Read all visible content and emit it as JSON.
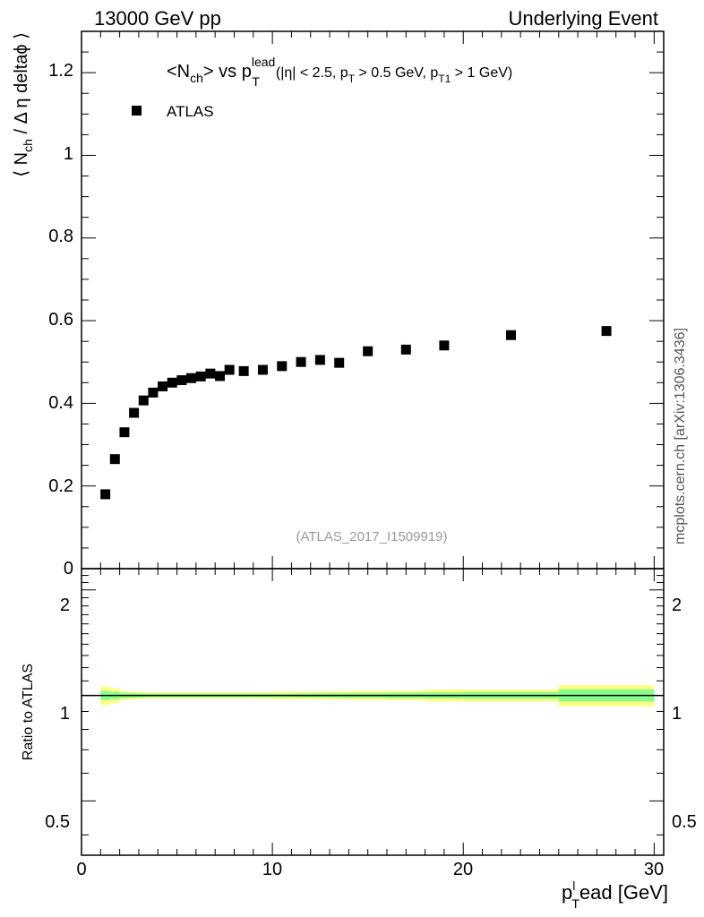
{
  "header": {
    "left": "13000 GeV pp",
    "right": "Underlying Event"
  },
  "plot_title": {
    "main_pre": "<N",
    "main_sub": "ch",
    "main_mid": "> vs p",
    "main_sup": "lead",
    "main_sub2": "T",
    "cuts_1": "(|η| < 2.5, p",
    "cuts_sub1": "T",
    "cuts_2": " > 0.5 GeV, p",
    "cuts_sub2": "T1",
    "cuts_3": " > 1 GeV)"
  },
  "legend": {
    "label": "ATLAS"
  },
  "analysis_id": "(ATLAS_2017_I1509919)",
  "side_text": "mcplots.cern.ch [arXiv:1306.3436]",
  "ylabel_main": {
    "pre": "⟨ N",
    "sub": "ch",
    "post": " / Δ η deltaϕ ⟩"
  },
  "ylabel_ratio": "Ratio to ATLAS",
  "xlabel": {
    "pre": "p",
    "sup": "l",
    "sub": "T",
    "post": "ead [GeV]"
  },
  "main_ticks": [
    "0",
    "0.2",
    "0.4",
    "0.6",
    "0.8",
    "1",
    "1.2"
  ],
  "ratio_ticks": [
    "0.5",
    "1",
    "2"
  ],
  "x_ticks": [
    "0",
    "10",
    "20",
    "30"
  ],
  "chart_data": [
    {
      "type": "scatter",
      "series": [
        {
          "name": "ATLAS",
          "x": [
            1.25,
            1.75,
            2.25,
            2.75,
            3.25,
            3.75,
            4.25,
            4.75,
            5.25,
            5.75,
            6.25,
            6.75,
            7.25,
            7.75,
            8.5,
            9.5,
            10.5,
            11.5,
            12.5,
            13.5,
            15.0,
            17.0,
            19.0,
            22.5,
            27.5
          ],
          "y": [
            0.18,
            0.265,
            0.33,
            0.377,
            0.407,
            0.426,
            0.441,
            0.45,
            0.456,
            0.461,
            0.465,
            0.472,
            0.466,
            0.481,
            0.478,
            0.481,
            0.49,
            0.5,
            0.505,
            0.498,
            0.526,
            0.53,
            0.54,
            0.565,
            0.575
          ]
        }
      ],
      "xlim": [
        0,
        30.5
      ],
      "ylim": [
        0,
        1.3
      ],
      "grid": false,
      "legend_position": "top-left"
    },
    {
      "type": "area",
      "series": [
        {
          "name": "ATLAS",
          "x_edges": [
            1.0,
            1.5,
            2.0,
            2.5,
            3.0,
            3.5,
            4.0,
            4.5,
            5.0,
            5.5,
            6.0,
            6.5,
            7.0,
            7.5,
            8.0,
            9.0,
            10.0,
            11.0,
            12.0,
            13.0,
            14.0,
            16.0,
            18.0,
            20.0,
            25.0,
            30.0
          ],
          "stat_band": [
            0.03,
            0.025,
            0.018,
            0.015,
            0.013,
            0.012,
            0.012,
            0.012,
            0.012,
            0.012,
            0.012,
            0.012,
            0.012,
            0.012,
            0.012,
            0.012,
            0.012,
            0.013,
            0.014,
            0.015,
            0.016,
            0.018,
            0.02,
            0.022,
            0.04
          ],
          "total_band": [
            0.06,
            0.05,
            0.03,
            0.025,
            0.022,
            0.02,
            0.02,
            0.02,
            0.02,
            0.02,
            0.02,
            0.02,
            0.02,
            0.02,
            0.02,
            0.022,
            0.024,
            0.025,
            0.026,
            0.028,
            0.03,
            0.032,
            0.04,
            0.04,
            0.07
          ]
        }
      ],
      "xlim": [
        0,
        30.5
      ],
      "ylim": [
        0.35,
        2.3
      ],
      "log_y": true,
      "reference_line": 1
    }
  ],
  "colors": {
    "marker": "#000000",
    "stat_band": "#88ff88",
    "total_band": "#ffff88"
  }
}
